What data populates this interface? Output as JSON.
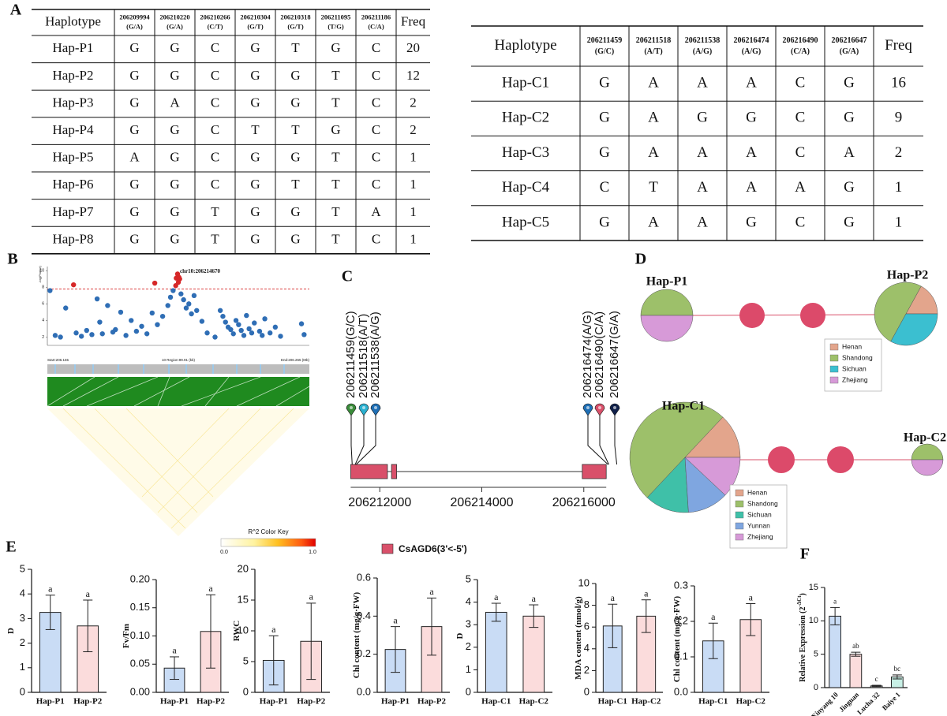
{
  "panel_labels": [
    "A",
    "B",
    "C",
    "D",
    "E",
    "F"
  ],
  "table_p": {
    "header": "Haplotype",
    "freq_header": "Freq",
    "columns": [
      {
        "id": "206209994",
        "allele": "(G/A)"
      },
      {
        "id": "206210220",
        "allele": "(G/A)"
      },
      {
        "id": "206210266",
        "allele": "(C/T)"
      },
      {
        "id": "206210304",
        "allele": "(G/T)"
      },
      {
        "id": "206210318",
        "allele": "(G/T)"
      },
      {
        "id": "206211095",
        "allele": "(T/G)"
      },
      {
        "id": "206211186",
        "allele": "(C/A)"
      }
    ],
    "rows": [
      [
        "Hap-P1",
        "G",
        "G",
        "C",
        "G",
        "T",
        "G",
        "C",
        20
      ],
      [
        "Hap-P2",
        "G",
        "G",
        "C",
        "G",
        "G",
        "T",
        "C",
        12
      ],
      [
        "Hap-P3",
        "G",
        "A",
        "C",
        "G",
        "G",
        "T",
        "C",
        2
      ],
      [
        "Hap-P4",
        "G",
        "G",
        "C",
        "T",
        "T",
        "G",
        "C",
        2
      ],
      [
        "Hap-P5",
        "A",
        "G",
        "C",
        "G",
        "G",
        "T",
        "C",
        1
      ],
      [
        "Hap-P6",
        "G",
        "G",
        "C",
        "G",
        "T",
        "T",
        "C",
        1
      ],
      [
        "Hap-P7",
        "G",
        "G",
        "T",
        "G",
        "G",
        "T",
        "A",
        1
      ],
      [
        "Hap-P8",
        "G",
        "G",
        "T",
        "G",
        "G",
        "T",
        "C",
        1
      ]
    ]
  },
  "table_c": {
    "header": "Haplotype",
    "freq_header": "Freq",
    "columns": [
      {
        "id": "206211459",
        "allele": "(G/C)"
      },
      {
        "id": "206211518",
        "allele": "(A/T)"
      },
      {
        "id": "206211538",
        "allele": "(A/G)"
      },
      {
        "id": "206216474",
        "allele": "(A/G)"
      },
      {
        "id": "206216490",
        "allele": "(C/A)"
      },
      {
        "id": "206216647",
        "allele": "(G/A)"
      }
    ],
    "rows": [
      [
        "Hap-C1",
        "G",
        "A",
        "A",
        "A",
        "C",
        "G",
        16
      ],
      [
        "Hap-C2",
        "G",
        "A",
        "G",
        "G",
        "C",
        "G",
        9
      ],
      [
        "Hap-C3",
        "G",
        "A",
        "A",
        "A",
        "C",
        "A",
        2
      ],
      [
        "Hap-C4",
        "C",
        "T",
        "A",
        "A",
        "A",
        "G",
        1
      ],
      [
        "Hap-C5",
        "G",
        "A",
        "A",
        "G",
        "C",
        "G",
        1
      ]
    ]
  },
  "chart_data": [
    {
      "type": "scatter",
      "annotation": "chr10:206214670",
      "y_label": "-log(Pvalue)",
      "xlim": [
        206.165,
        206.265
      ],
      "ylim": [
        1,
        10.5
      ],
      "yticks": [
        2,
        4,
        6,
        8,
        10
      ],
      "threshold": 7.8,
      "color": "#2f6eb5",
      "highlight_color": "#d62728",
      "x": [
        206.166,
        206.168,
        206.17,
        206.172,
        206.175,
        206.176,
        206.178,
        206.18,
        206.182,
        206.184,
        206.185,
        206.186,
        206.188,
        206.19,
        206.191,
        206.193,
        206.195,
        206.197,
        206.199,
        206.201,
        206.203,
        206.205,
        206.206,
        206.207,
        206.209,
        206.211,
        206.212,
        206.213,
        206.214,
        206.2142,
        206.2147,
        206.215,
        206.2152,
        206.2155,
        206.216,
        206.217,
        206.218,
        206.219,
        206.22,
        206.221,
        206.222,
        206.224,
        206.226,
        206.229,
        206.231,
        206.232,
        206.233,
        206.234,
        206.235,
        206.236,
        206.237,
        206.238,
        206.239,
        206.24,
        206.241,
        206.242,
        206.243,
        206.244,
        206.246,
        206.247,
        206.248,
        206.25,
        206.252,
        206.254,
        206.262,
        206.263
      ],
      "values": [
        7.6,
        2.2,
        2.0,
        5.5,
        8.3,
        2.5,
        2.1,
        2.8,
        2.3,
        6.6,
        3.8,
        2.4,
        5.8,
        2.6,
        2.9,
        5.0,
        2.2,
        4.0,
        2.7,
        3.3,
        2.4,
        4.9,
        8.5,
        3.5,
        4.5,
        5.8,
        6.8,
        7.6,
        8.2,
        9.1,
        9.6,
        8.6,
        9.2,
        9.0,
        7.2,
        6.5,
        5.5,
        6.0,
        4.8,
        7.0,
        5.2,
        3.9,
        2.5,
        2.0,
        5.2,
        4.5,
        3.8,
        3.2,
        2.9,
        2.4,
        4.0,
        3.5,
        2.8,
        2.2,
        4.6,
        3.0,
        2.5,
        3.7,
        2.7,
        2.2,
        4.2,
        2.5,
        3.2,
        2.1,
        3.6,
        2.3
      ],
      "region_labels": [
        "Start:206.165",
        "10 Region:99.91 (kb)",
        "End:206.265 (Mb)"
      ],
      "color_key": {
        "title": "R^2 Color Key",
        "min_label": "0.0",
        "max_label": "1.0"
      }
    },
    {
      "type": "gene",
      "xlim": [
        206211300,
        206216700
      ],
      "xticks": [
        206212000,
        206214000,
        206216000
      ],
      "exons": [
        [
          206211430,
          206212150
        ],
        [
          206212230,
          206212330
        ],
        [
          206215970,
          206216440
        ]
      ],
      "legend": "CsAGD6(3'<-5')",
      "color": "#d9506a",
      "snps": [
        {
          "label": "206211459(G/C)",
          "position": 206211459,
          "color": "#3a8c3a"
        },
        {
          "label": "206211518(A/T)",
          "position": 206211518,
          "color": "#2ab0d0"
        },
        {
          "label": "206211538(A/G)",
          "position": 206211538,
          "color": "#1f6fb5"
        },
        {
          "label": "206216474(A/G)",
          "position": 206216474,
          "color": "#1f6fb5"
        },
        {
          "label": "206216490(C/A)",
          "position": 206216490,
          "color": "#d9506a"
        },
        {
          "label": "206216647(G/A)",
          "position": 206216647,
          "color": "#10204a"
        }
      ]
    },
    {
      "type": "network",
      "nodes": [
        "Hap-P1",
        "Hap-P2"
      ],
      "series": [
        {
          "name": "Henan",
          "color": "#e3a58c",
          "values": [
            0,
            17
          ]
        },
        {
          "name": "Shandong",
          "color": "#9dc06a",
          "values": [
            50,
            50
          ]
        },
        {
          "name": "Sichuan",
          "color": "#3bbfd0",
          "values": [
            0,
            33
          ]
        },
        {
          "name": "Zhejiang",
          "color": "#d79ad8",
          "values": [
            50,
            0
          ]
        }
      ]
    },
    {
      "type": "network",
      "nodes": [
        "Hap-C1",
        "Hap-C2"
      ],
      "series": [
        {
          "name": "Henan",
          "color": "#e3a58c",
          "values": [
            13,
            0
          ]
        },
        {
          "name": "Shandong",
          "color": "#9dc06a",
          "values": [
            50,
            50
          ]
        },
        {
          "name": "Sichuan",
          "color": "#3fc0a8",
          "values": [
            13,
            0
          ]
        },
        {
          "name": "Yunnan",
          "color": "#7fa6e0",
          "values": [
            12,
            0
          ]
        },
        {
          "name": "Zhejiang",
          "color": "#d79ad8",
          "values": [
            12,
            50
          ]
        }
      ]
    },
    {
      "type": "bar",
      "y_label": "D",
      "categories": [
        "Hap-P1",
        "Hap-P2"
      ],
      "values": [
        3.25,
        2.7
      ],
      "errors": [
        0.7,
        1.05
      ],
      "letters": [
        "a",
        "a"
      ],
      "colors": [
        "#c9dcf5",
        "#fbdcdc"
      ],
      "ylim": [
        0,
        5
      ],
      "yticks": [
        0,
        1,
        2,
        3,
        4,
        5
      ]
    },
    {
      "type": "bar",
      "y_label": "Fv/Fm",
      "categories": [
        "Hap-P1",
        "Hap-P2"
      ],
      "values": [
        0.043,
        0.108
      ],
      "errors": [
        0.02,
        0.065
      ],
      "letters": [
        "a",
        "a"
      ],
      "colors": [
        "#c9dcf5",
        "#fbdcdc"
      ],
      "ylim": [
        0,
        0.2
      ],
      "yticks": [
        {
          "value": 0,
          "label": "0.00"
        },
        0.05,
        {
          "value": 0.1,
          "label": "0.10"
        },
        0.15,
        {
          "value": 0.2,
          "label": "0.20"
        }
      ]
    },
    {
      "type": "bar",
      "y_label": "RWC",
      "categories": [
        "Hap-P1",
        "Hap-P2"
      ],
      "values": [
        5.2,
        8.3
      ],
      "errors": [
        4,
        6.2
      ],
      "letters": [
        "a",
        "a"
      ],
      "colors": [
        "#c9dcf5",
        "#fbdcdc"
      ],
      "ylim": [
        0,
        20
      ],
      "yticks": [
        0,
        5,
        10,
        15,
        20
      ]
    },
    {
      "type": "bar",
      "y_label": "Chl content (mg/g·FW)",
      "categories": [
        "Hap-P1",
        "Hap-P2"
      ],
      "values": [
        0.225,
        0.345
      ],
      "errors": [
        0.12,
        0.15
      ],
      "letters": [
        "a",
        "a"
      ],
      "colors": [
        "#c9dcf5",
        "#fbdcdc"
      ],
      "ylim": [
        0,
        0.6
      ],
      "yticks": [
        {
          "value": 0,
          "label": "0.0"
        },
        0.2,
        0.4,
        0.6
      ]
    },
    {
      "type": "bar",
      "y_label": "D",
      "categories": [
        "Hap-C1",
        "Hap-C2"
      ],
      "values": [
        3.55,
        3.38
      ],
      "errors": [
        0.4,
        0.5
      ],
      "letters": [
        "a",
        "a"
      ],
      "colors": [
        "#c9dcf5",
        "#fbdcdc"
      ],
      "ylim": [
        0,
        5
      ],
      "yticks": [
        0,
        1,
        2,
        3,
        4,
        5
      ]
    },
    {
      "type": "bar",
      "y_label": "MDA content (nmol/g)",
      "categories": [
        "Hap-C1",
        "Hap-C2"
      ],
      "values": [
        6.1,
        7.0
      ],
      "errors": [
        2,
        1.5
      ],
      "letters": [
        "a",
        "a"
      ],
      "colors": [
        "#c9dcf5",
        "#fbdcdc"
      ],
      "ylim": [
        0,
        10
      ],
      "yticks": [
        0,
        2,
        4,
        6,
        8,
        10
      ]
    },
    {
      "type": "bar",
      "y_label": "Chl content (mg/g·FW)",
      "categories": [
        "Hap-C1",
        "Hap-C2"
      ],
      "values": [
        0.145,
        0.205
      ],
      "errors": [
        0.05,
        0.045
      ],
      "letters": [
        "a",
        "a"
      ],
      "colors": [
        "#c9dcf5",
        "#fbdcdc"
      ],
      "ylim": [
        0,
        0.3
      ],
      "yticks": [
        {
          "value": 0,
          "label": "0.0"
        },
        0.1,
        0.2,
        0.3
      ]
    },
    {
      "type": "bar",
      "y_label": "Relative Expression (2",
      "y_label_exponent": "-ΔCt",
      "y_label_end": ")",
      "categories": [
        "Xinyang 10",
        "Jinguan",
        "Lucha 32",
        "Baiye 1"
      ],
      "values": [
        10.7,
        5.0,
        0.25,
        1.6
      ],
      "errors": [
        1.3,
        0.3,
        0.1,
        0.3
      ],
      "letters": [
        "a",
        "ab",
        "c",
        "bc"
      ],
      "colors": [
        "#c9dcf5",
        "#fbdcdc",
        "#dcdcdc",
        "#c8f0e6"
      ],
      "ylim": [
        0,
        15
      ],
      "yticks": [
        0,
        5,
        10,
        15
      ]
    }
  ]
}
